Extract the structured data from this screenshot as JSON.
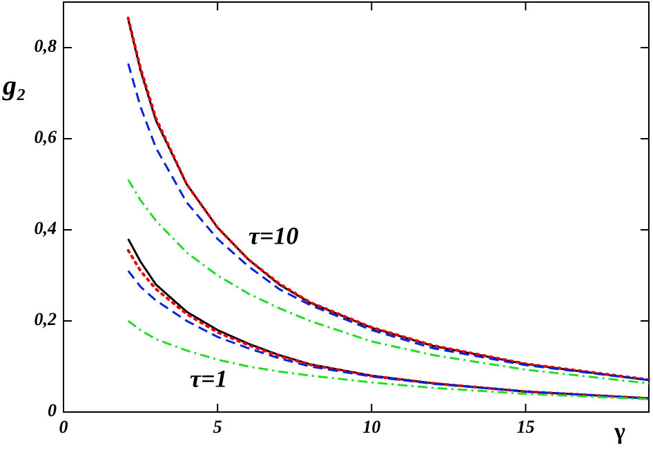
{
  "chart_data": {
    "type": "line",
    "x_label": "γ",
    "y_label": "g₂",
    "annotations": [
      "τ=10",
      "τ=1"
    ],
    "x": [
      2.1,
      2.5,
      3,
      4,
      5,
      6,
      7,
      8,
      10,
      12,
      15,
      19
    ],
    "series": [
      {
        "color": "#000000",
        "style": "solid",
        "values": [
          0.862,
          0.75,
          0.64,
          0.5,
          0.405,
          0.335,
          0.28,
          0.24,
          0.185,
          0.145,
          0.105,
          0.07
        ]
      },
      {
        "color": "#e8000b",
        "style": "dotted",
        "values": [
          0.865,
          0.755,
          0.645,
          0.5,
          0.405,
          0.335,
          0.282,
          0.241,
          0.186,
          0.146,
          0.106,
          0.071
        ]
      },
      {
        "color": "#0022dd",
        "style": "dashed",
        "values": [
          0.765,
          0.67,
          0.58,
          0.46,
          0.38,
          0.32,
          0.27,
          0.235,
          0.18,
          0.14,
          0.103,
          0.07
        ]
      },
      {
        "color": "#22dd22",
        "style": "dashdot",
        "values": [
          0.51,
          0.465,
          0.42,
          0.35,
          0.3,
          0.26,
          0.228,
          0.2,
          0.155,
          0.125,
          0.093,
          0.063
        ]
      },
      {
        "color": "#000000",
        "style": "solid",
        "values": [
          0.38,
          0.33,
          0.28,
          0.22,
          0.18,
          0.15,
          0.125,
          0.105,
          0.08,
          0.063,
          0.045,
          0.03
        ]
      },
      {
        "color": "#e8000b",
        "style": "dotted",
        "values": [
          0.355,
          0.31,
          0.27,
          0.215,
          0.175,
          0.147,
          0.123,
          0.104,
          0.079,
          0.063,
          0.045,
          0.03
        ]
      },
      {
        "color": "#0022dd",
        "style": "dashed",
        "values": [
          0.31,
          0.275,
          0.245,
          0.2,
          0.165,
          0.14,
          0.118,
          0.1,
          0.078,
          0.062,
          0.045,
          0.03
        ]
      },
      {
        "color": "#22dd22",
        "style": "dashdot",
        "values": [
          0.2,
          0.18,
          0.16,
          0.135,
          0.115,
          0.1,
          0.089,
          0.08,
          0.065,
          0.053,
          0.04,
          0.028
        ]
      }
    ],
    "xlim": [
      0,
      19
    ],
    "ylim": [
      0,
      0.9
    ],
    "xticks": [
      0,
      5,
      10,
      15
    ],
    "yticks": [
      0,
      {
        "value": 0.2,
        "label": "0,2"
      },
      {
        "value": 0.4,
        "label": "0,4"
      },
      {
        "value": 0.6,
        "label": "0,6"
      },
      {
        "value": 0.8,
        "label": "0,8"
      }
    ],
    "grid": false
  }
}
